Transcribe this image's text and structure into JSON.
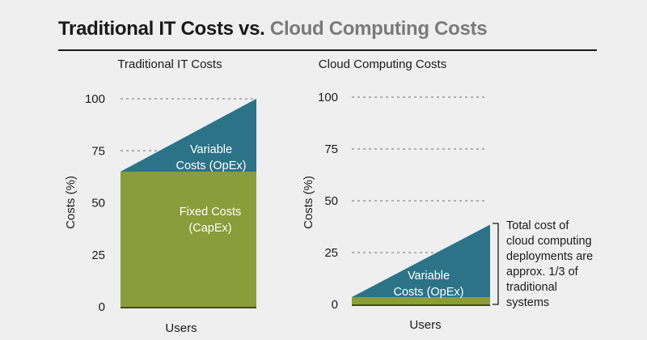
{
  "title": {
    "part_a": "Traditional IT Costs vs.",
    "part_b": "Cloud Computing Costs"
  },
  "colors": {
    "fixed": "#8b9c3a",
    "variable": "#2c7388",
    "baseline": "#3f4f17",
    "grid": "#9a9a9a",
    "title_accent": "#7a7a7a"
  },
  "annotation": {
    "lines": [
      "Total cost of",
      "cloud computing",
      "deployments are",
      "approx. 1/3 of",
      "traditional",
      "systems"
    ]
  },
  "chart_data": [
    {
      "type": "area",
      "title": "Traditional IT Costs",
      "xlabel": "Users",
      "ylabel": "Costs (%)",
      "ylim": [
        0,
        100
      ],
      "yticks": [
        0,
        25,
        50,
        75,
        100
      ],
      "grid": "dashed-horizontal",
      "x": [
        0,
        1
      ],
      "series": [
        {
          "name": "Fixed Costs (CapEx)",
          "label_lines": [
            "Fixed Costs",
            "(CapEx)"
          ],
          "values": [
            65,
            65
          ],
          "color": "#8b9c3a"
        },
        {
          "name": "Variable Costs (OpEx)",
          "label_lines": [
            "Variable",
            "Costs (OpEx)"
          ],
          "values": [
            0,
            35
          ],
          "color": "#2c7388"
        }
      ]
    },
    {
      "type": "area",
      "title": "Cloud Computing Costs",
      "xlabel": "Users",
      "ylabel": "Costs (%)",
      "ylim": [
        0,
        100
      ],
      "yticks": [
        0,
        25,
        50,
        75,
        100
      ],
      "grid": "dashed-horizontal",
      "x": [
        0,
        1
      ],
      "series": [
        {
          "name": "Fixed Costs",
          "label_lines": [],
          "values": [
            3.5,
            3.5
          ],
          "color": "#8b9c3a"
        },
        {
          "name": "Variable Costs (OpEx)",
          "label_lines": [
            "Variable",
            "Costs (OpEx)"
          ],
          "values": [
            0,
            35
          ],
          "color": "#2c7388"
        }
      ]
    }
  ]
}
